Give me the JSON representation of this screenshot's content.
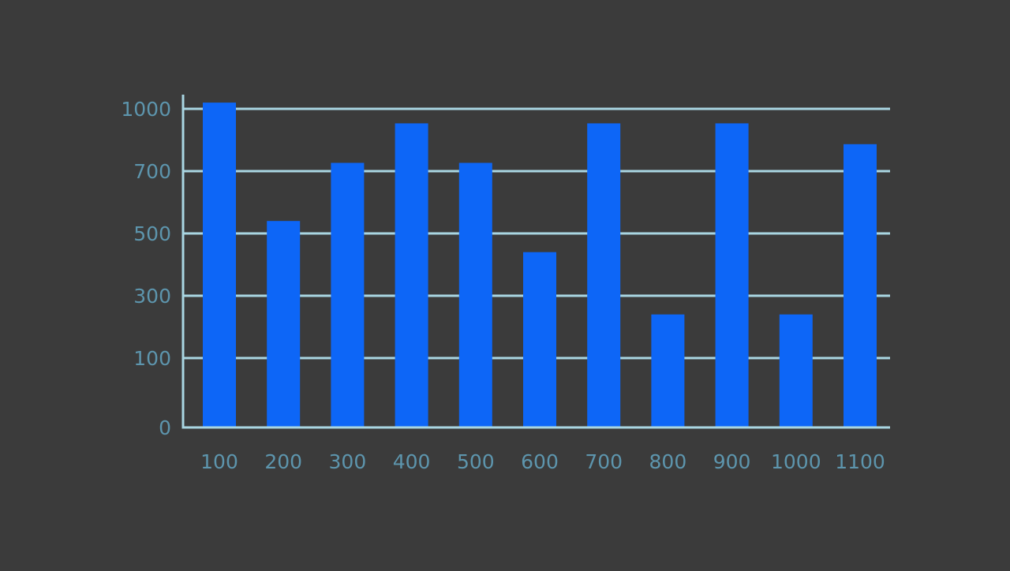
{
  "chart_data": {
    "type": "bar",
    "title": "",
    "xlabel": "",
    "ylabel": "",
    "categories": [
      "100",
      "200",
      "300",
      "400",
      "500",
      "600",
      "700",
      "800",
      "900",
      "1000",
      "1100"
    ],
    "values": [
      1030,
      540,
      740,
      930,
      740,
      440,
      930,
      240,
      930,
      240,
      830
    ],
    "y_tick_labels": [
      "0",
      "100",
      "300",
      "500",
      "700",
      "1000"
    ],
    "grid": true,
    "legend": "none",
    "colors": {
      "background": "#3b3b3b",
      "bar": "#0d66f7",
      "gridline": "#a9d6e2",
      "axis": "#a9d6e2",
      "tick_text": "#5d95ad"
    }
  }
}
